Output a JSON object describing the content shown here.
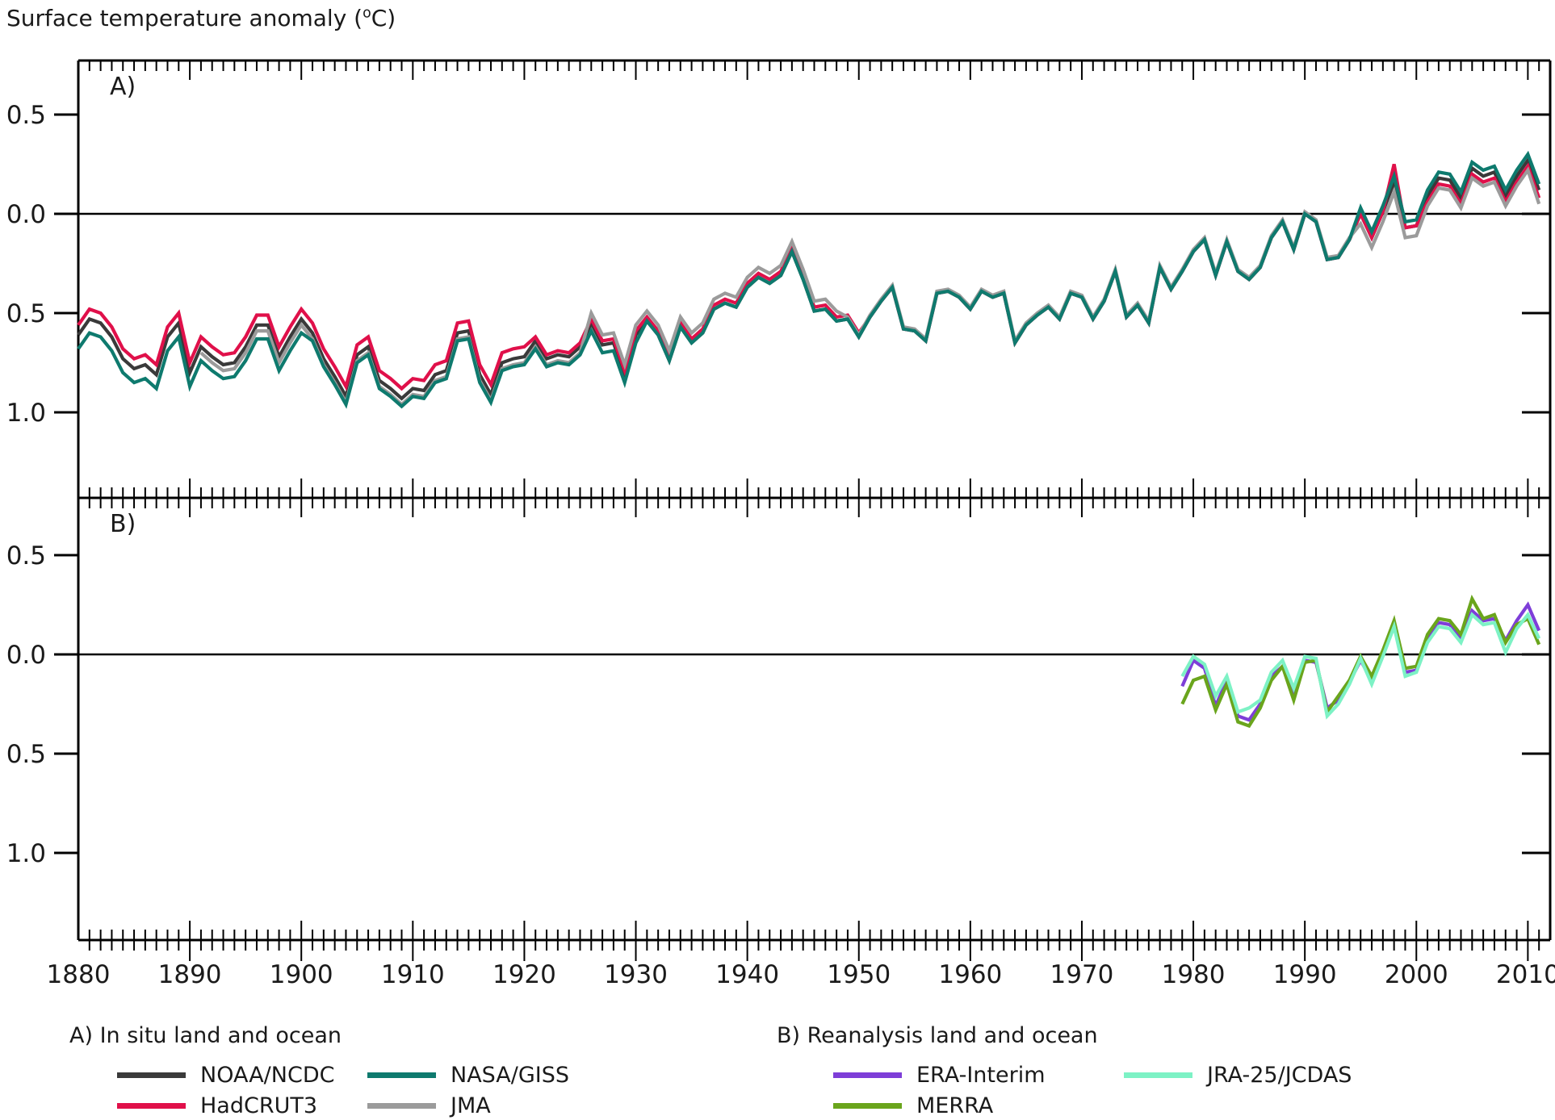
{
  "title": {
    "prefix": "Surface temperature anomaly (",
    "sup": "o",
    "suffix": "C)"
  },
  "panel_labels": {
    "a": "A)",
    "b": "B)"
  },
  "legend": {
    "a_title": "A) In situ land and ocean",
    "b_title": "B) Reanalysis land and ocean",
    "items": {
      "noaa": "NOAA/NCDC",
      "hadcrut": "HadCRUT3",
      "giss": "NASA/GISS",
      "jma": "JMA",
      "era": "ERA-Interim",
      "merra": "MERRA",
      "jra": "JRA-25/JCDAS"
    }
  },
  "chart_data": [
    {
      "panel": "A",
      "type": "line",
      "title": "In situ land and ocean",
      "x_start": 1880,
      "x_end": 2011,
      "x_step": 1,
      "x_axis": {
        "tick_labels": [
          1880,
          1890,
          1900,
          1910,
          1920,
          1930,
          1940,
          1950,
          1960,
          1970,
          1980,
          1990,
          2000,
          2010
        ],
        "minor_step": 1,
        "range": [
          1880,
          2012
        ]
      },
      "y_axis": {
        "tick_values": [
          0.5,
          0.0,
          -0.5,
          -1.0
        ],
        "tick_labels": [
          "0.5",
          "0.0",
          "− 0.5",
          "− 1.0"
        ],
        "range": [
          -1.43,
          0.77
        ],
        "zero_line": true
      },
      "series": [
        {
          "key": "noaa",
          "name": "NOAA/NCDC",
          "color": "#3a3a3a",
          "values": [
            -0.61,
            -0.53,
            -0.55,
            -0.62,
            -0.73,
            -0.78,
            -0.76,
            -0.81,
            -0.62,
            -0.55,
            -0.8,
            -0.67,
            -0.72,
            -0.76,
            -0.75,
            -0.67,
            -0.56,
            -0.56,
            -0.72,
            -0.62,
            -0.53,
            -0.6,
            -0.73,
            -0.82,
            -0.92,
            -0.71,
            -0.67,
            -0.84,
            -0.88,
            -0.93,
            -0.88,
            -0.89,
            -0.81,
            -0.79,
            -0.6,
            -0.59,
            -0.81,
            -0.91,
            -0.75,
            -0.73,
            -0.72,
            -0.64,
            -0.73,
            -0.71,
            -0.72,
            -0.67,
            -0.55,
            -0.66,
            -0.65,
            -0.81,
            -0.61,
            -0.54,
            -0.61,
            -0.74,
            -0.57,
            -0.65,
            -0.6,
            -0.48,
            -0.45,
            -0.47,
            -0.37,
            -0.32,
            -0.35,
            -0.31,
            -0.19,
            -0.33,
            -0.49,
            -0.48,
            -0.54,
            -0.53,
            -0.62,
            -0.52,
            -0.44,
            -0.37,
            -0.58,
            -0.59,
            -0.64,
            -0.4,
            -0.39,
            -0.42,
            -0.48,
            -0.39,
            -0.42,
            -0.4,
            -0.65,
            -0.56,
            -0.51,
            -0.47,
            -0.53,
            -0.4,
            -0.42,
            -0.53,
            -0.44,
            -0.29,
            -0.52,
            -0.46,
            -0.55,
            -0.27,
            -0.38,
            -0.29,
            -0.19,
            -0.13,
            -0.31,
            -0.14,
            -0.29,
            -0.33,
            -0.27,
            -0.12,
            -0.04,
            -0.18,
            0.0,
            -0.04,
            -0.23,
            -0.22,
            -0.13,
            0.0,
            -0.12,
            0.01,
            0.16,
            -0.07,
            -0.06,
            0.09,
            0.18,
            0.17,
            0.08,
            0.23,
            0.19,
            0.21,
            0.09,
            0.19,
            0.27,
            0.12
          ]
        },
        {
          "key": "hadcrut",
          "name": "HadCRUT3",
          "color": "#e0104a",
          "values": [
            -0.56,
            -0.48,
            -0.5,
            -0.57,
            -0.68,
            -0.73,
            -0.71,
            -0.76,
            -0.57,
            -0.5,
            -0.75,
            -0.62,
            -0.67,
            -0.71,
            -0.7,
            -0.62,
            -0.51,
            -0.51,
            -0.67,
            -0.57,
            -0.48,
            -0.55,
            -0.68,
            -0.77,
            -0.87,
            -0.66,
            -0.62,
            -0.79,
            -0.83,
            -0.88,
            -0.83,
            -0.84,
            -0.76,
            -0.74,
            -0.55,
            -0.54,
            -0.76,
            -0.86,
            -0.7,
            -0.68,
            -0.67,
            -0.62,
            -0.71,
            -0.69,
            -0.7,
            -0.65,
            -0.53,
            -0.64,
            -0.63,
            -0.79,
            -0.59,
            -0.52,
            -0.59,
            -0.72,
            -0.55,
            -0.63,
            -0.58,
            -0.46,
            -0.43,
            -0.45,
            -0.35,
            -0.3,
            -0.33,
            -0.29,
            -0.17,
            -0.31,
            -0.47,
            -0.46,
            -0.52,
            -0.51,
            -0.6,
            -0.52,
            -0.44,
            -0.37,
            -0.58,
            -0.59,
            -0.64,
            -0.4,
            -0.39,
            -0.42,
            -0.48,
            -0.39,
            -0.42,
            -0.4,
            -0.65,
            -0.56,
            -0.51,
            -0.47,
            -0.53,
            -0.4,
            -0.42,
            -0.53,
            -0.44,
            -0.29,
            -0.52,
            -0.46,
            -0.55,
            -0.27,
            -0.38,
            -0.29,
            -0.19,
            -0.13,
            -0.31,
            -0.14,
            -0.29,
            -0.33,
            -0.27,
            -0.12,
            -0.04,
            -0.18,
            0.0,
            -0.04,
            -0.23,
            -0.22,
            -0.13,
            0.0,
            -0.12,
            0.01,
            0.25,
            -0.07,
            -0.06,
            0.06,
            0.15,
            0.14,
            0.05,
            0.2,
            0.16,
            0.18,
            0.06,
            0.16,
            0.24,
            0.08
          ]
        },
        {
          "key": "jma",
          "name": "JMA",
          "color": "#9b9b9b",
          "values": [
            null,
            null,
            null,
            null,
            null,
            null,
            null,
            null,
            null,
            null,
            null,
            -0.7,
            -0.75,
            -0.79,
            -0.78,
            -0.7,
            -0.59,
            -0.59,
            -0.75,
            -0.65,
            -0.56,
            -0.63,
            -0.76,
            -0.85,
            -0.95,
            -0.74,
            -0.7,
            -0.87,
            -0.91,
            -0.96,
            -0.91,
            -0.92,
            -0.84,
            -0.82,
            -0.63,
            -0.62,
            -0.84,
            -0.94,
            -0.78,
            -0.76,
            -0.75,
            -0.67,
            -0.76,
            -0.74,
            -0.75,
            -0.7,
            -0.5,
            -0.61,
            -0.6,
            -0.76,
            -0.56,
            -0.49,
            -0.56,
            -0.69,
            -0.52,
            -0.6,
            -0.55,
            -0.43,
            -0.4,
            -0.42,
            -0.32,
            -0.27,
            -0.3,
            -0.26,
            -0.14,
            -0.28,
            -0.44,
            -0.43,
            -0.49,
            -0.52,
            -0.61,
            -0.51,
            -0.43,
            -0.36,
            -0.57,
            -0.58,
            -0.63,
            -0.39,
            -0.38,
            -0.41,
            -0.47,
            -0.38,
            -0.41,
            -0.39,
            -0.64,
            -0.55,
            -0.5,
            -0.46,
            -0.52,
            -0.39,
            -0.41,
            -0.52,
            -0.43,
            -0.28,
            -0.51,
            -0.45,
            -0.54,
            -0.26,
            -0.37,
            -0.28,
            -0.18,
            -0.12,
            -0.3,
            -0.13,
            -0.28,
            -0.32,
            -0.26,
            -0.11,
            -0.03,
            -0.17,
            0.01,
            -0.03,
            -0.22,
            -0.21,
            -0.12,
            -0.05,
            -0.17,
            -0.04,
            0.11,
            -0.12,
            -0.11,
            0.04,
            0.13,
            0.12,
            0.03,
            0.18,
            0.14,
            0.16,
            0.04,
            0.14,
            0.22,
            0.05
          ]
        },
        {
          "key": "giss",
          "name": "NASA/GISS",
          "color": "#0e7a6e",
          "values": [
            -0.68,
            -0.6,
            -0.62,
            -0.69,
            -0.8,
            -0.85,
            -0.83,
            -0.88,
            -0.69,
            -0.62,
            -0.87,
            -0.74,
            -0.79,
            -0.83,
            -0.82,
            -0.74,
            -0.63,
            -0.63,
            -0.79,
            -0.69,
            -0.6,
            -0.64,
            -0.77,
            -0.86,
            -0.96,
            -0.75,
            -0.71,
            -0.88,
            -0.92,
            -0.97,
            -0.92,
            -0.93,
            -0.85,
            -0.83,
            -0.64,
            -0.63,
            -0.85,
            -0.95,
            -0.79,
            -0.77,
            -0.76,
            -0.68,
            -0.77,
            -0.75,
            -0.76,
            -0.71,
            -0.59,
            -0.7,
            -0.69,
            -0.85,
            -0.65,
            -0.54,
            -0.61,
            -0.74,
            -0.57,
            -0.65,
            -0.6,
            -0.48,
            -0.45,
            -0.47,
            -0.37,
            -0.32,
            -0.35,
            -0.31,
            -0.19,
            -0.33,
            -0.49,
            -0.48,
            -0.54,
            -0.53,
            -0.62,
            -0.52,
            -0.44,
            -0.37,
            -0.58,
            -0.59,
            -0.64,
            -0.4,
            -0.39,
            -0.42,
            -0.48,
            -0.39,
            -0.42,
            -0.4,
            -0.65,
            -0.56,
            -0.51,
            -0.47,
            -0.53,
            -0.4,
            -0.42,
            -0.53,
            -0.44,
            -0.29,
            -0.52,
            -0.46,
            -0.55,
            -0.27,
            -0.38,
            -0.29,
            -0.19,
            -0.13,
            -0.31,
            -0.14,
            -0.29,
            -0.33,
            -0.27,
            -0.12,
            -0.04,
            -0.18,
            0.0,
            -0.04,
            -0.23,
            -0.22,
            -0.13,
            0.03,
            -0.09,
            0.04,
            0.19,
            -0.04,
            -0.03,
            0.12,
            0.21,
            0.2,
            0.11,
            0.26,
            0.22,
            0.24,
            0.12,
            0.22,
            0.3,
            0.15
          ]
        }
      ]
    },
    {
      "panel": "B",
      "type": "line",
      "title": "Reanalysis land and ocean",
      "x_start": 1979,
      "x_end": 2011,
      "x_step": 1,
      "x_axis": {
        "tick_labels": [
          1880,
          1890,
          1900,
          1910,
          1920,
          1930,
          1940,
          1950,
          1960,
          1970,
          1980,
          1990,
          2000,
          2010
        ],
        "minor_step": 1,
        "range": [
          1880,
          2012
        ]
      },
      "y_axis": {
        "tick_values": [
          0.5,
          0.0,
          -0.5,
          -1.0
        ],
        "tick_labels": [
          "0.5",
          "0.0",
          "− 0.5",
          "− 1.0"
        ],
        "range": [
          -1.44,
          0.79
        ],
        "zero_line": true
      },
      "series": [
        {
          "key": "era",
          "name": "ERA-Interim",
          "color": "#7e3ed8",
          "values": [
            -0.16,
            -0.03,
            -0.07,
            -0.26,
            -0.13,
            -0.31,
            -0.33,
            -0.25,
            -0.11,
            -0.06,
            -0.21,
            -0.03,
            -0.04,
            -0.27,
            -0.23,
            -0.14,
            -0.03,
            -0.13,
            0.0,
            0.16,
            -0.09,
            -0.08,
            0.08,
            0.16,
            0.15,
            0.08,
            0.22,
            0.17,
            0.18,
            0.07,
            0.17,
            0.25,
            0.12
          ]
        },
        {
          "key": "merra",
          "name": "MERRA",
          "color": "#6aa51c",
          "values": [
            -0.25,
            -0.13,
            -0.11,
            -0.28,
            -0.15,
            -0.34,
            -0.36,
            -0.27,
            -0.13,
            -0.06,
            -0.23,
            -0.04,
            -0.03,
            -0.29,
            -0.21,
            -0.13,
            -0.01,
            -0.11,
            0.02,
            0.17,
            -0.07,
            -0.06,
            0.1,
            0.18,
            0.17,
            0.1,
            0.28,
            0.18,
            0.2,
            0.06,
            0.15,
            0.18,
            0.05
          ]
        },
        {
          "key": "jra",
          "name": "JRA-25/JCDAS",
          "color": "#7df2c5",
          "values": [
            -0.11,
            -0.01,
            -0.05,
            -0.21,
            -0.11,
            -0.29,
            -0.27,
            -0.23,
            -0.09,
            -0.03,
            -0.17,
            -0.01,
            -0.02,
            -0.31,
            -0.25,
            -0.15,
            -0.02,
            -0.15,
            -0.01,
            0.14,
            -0.11,
            -0.09,
            0.06,
            0.14,
            0.13,
            0.06,
            0.2,
            0.15,
            0.16,
            0.01,
            0.13,
            0.2,
            0.08
          ]
        }
      ]
    }
  ]
}
